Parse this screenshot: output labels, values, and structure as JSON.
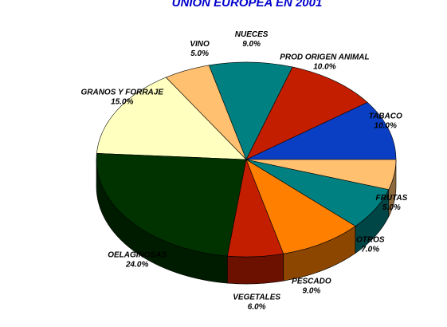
{
  "chart_data": {
    "type": "pie",
    "title": "UNION EUROPEA EN 2001",
    "categories": [
      "TABACO",
      "PROD ORIGEN ANIMAL",
      "NUECES",
      "VINO",
      "GRANOS Y FORRAJE",
      "OELAGINOSAS",
      "VEGETALES",
      "PESCADO",
      "OTROS",
      "FRUTAS"
    ],
    "values": [
      10,
      10,
      9,
      5,
      15,
      24,
      6,
      9,
      7,
      5
    ],
    "value_labels": [
      "10.0%",
      "10.0%",
      "9.0%",
      "5.0%",
      "15.0%",
      "24.0%",
      "6.0%",
      "9.0%",
      "7.0%",
      "5.0%"
    ],
    "colors": [
      "#0a3fc4",
      "#c41e00",
      "#008080",
      "#ffc070",
      "#ffffc0",
      "#003300",
      "#c41e00",
      "#ff8000",
      "#008080",
      "#ffc070"
    ]
  }
}
